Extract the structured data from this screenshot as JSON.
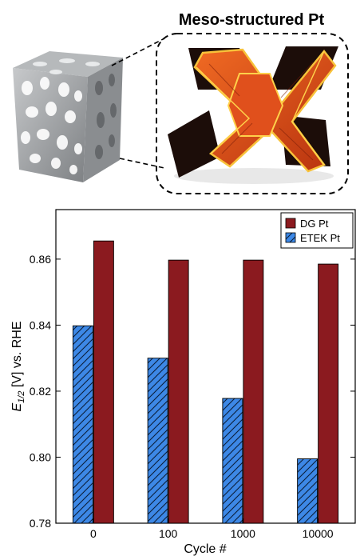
{
  "illustration": {
    "title": "Meso-structured Pt"
  },
  "chart_data": {
    "type": "bar",
    "categories": [
      "0",
      "100",
      "1000",
      "10000"
    ],
    "series": [
      {
        "name": "DG Pt",
        "values": [
          0.8655,
          0.8597,
          0.8597,
          0.8585
        ],
        "color": "#8b1a1f"
      },
      {
        "name": "ETEK Pt",
        "values": [
          0.8398,
          0.83,
          0.8178,
          0.7995
        ],
        "color": "#3d88e6",
        "pattern": "hatched"
      }
    ],
    "xlabel": "Cycle #",
    "ylabel": {
      "symbol": "E",
      "subscript": "1/2",
      "rest": " [V] vs. RHE"
    },
    "ylim": [
      0.78,
      0.875
    ],
    "yticks": [
      "0.78",
      "0.80",
      "0.82",
      "0.84",
      "0.86"
    ],
    "legend_position": "top-right",
    "grid": false
  },
  "colors": {
    "gyroid": "#a6a9ab",
    "pt_orange": "#e0501c",
    "pt_dark": "#1c0d09"
  }
}
